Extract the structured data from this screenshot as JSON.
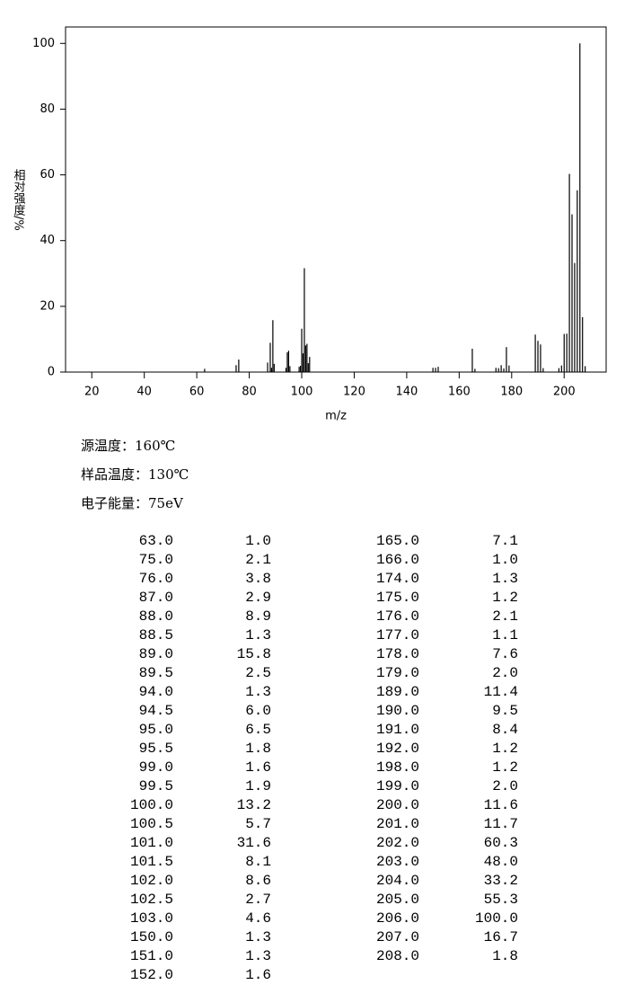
{
  "chart_data": {
    "type": "bar",
    "x_label": "m/z",
    "y_label": "相对强度/%",
    "x": [
      63,
      75,
      76,
      87,
      88,
      88.5,
      89,
      89.5,
      94,
      94.5,
      95,
      95.5,
      99,
      99.5,
      100,
      100.5,
      101,
      101.5,
      102,
      102.5,
      103,
      150,
      151,
      152,
      165,
      166,
      174,
      175,
      176,
      177,
      178,
      179,
      189,
      190,
      191,
      192,
      198,
      199,
      200,
      201,
      202,
      203,
      204,
      205,
      206,
      207,
      208
    ],
    "x_labels": [
      "63.0",
      "75.0",
      "76.0",
      "87.0",
      "88.0",
      "88.5",
      "89.0",
      "89.5",
      "94.0",
      "94.5",
      "95.0",
      "95.5",
      "99.0",
      "99.5",
      "100.0",
      "100.5",
      "101.0",
      "101.5",
      "102.0",
      "102.5",
      "103.0",
      "150.0",
      "151.0",
      "152.0",
      "165.0",
      "166.0",
      "174.0",
      "175.0",
      "176.0",
      "177.0",
      "178.0",
      "179.0",
      "189.0",
      "190.0",
      "191.0",
      "192.0",
      "198.0",
      "199.0",
      "200.0",
      "201.0",
      "202.0",
      "203.0",
      "204.0",
      "205.0",
      "206.0",
      "207.0",
      "208.0"
    ],
    "values": [
      1.0,
      2.1,
      3.8,
      2.9,
      8.9,
      1.3,
      15.8,
      2.5,
      1.3,
      6.0,
      6.5,
      1.8,
      1.6,
      1.9,
      13.2,
      5.7,
      31.6,
      8.1,
      8.6,
      2.7,
      4.6,
      1.3,
      1.3,
      1.6,
      7.1,
      1.0,
      1.3,
      1.2,
      2.1,
      1.1,
      7.6,
      2.0,
      11.4,
      9.5,
      8.4,
      1.2,
      1.2,
      2.0,
      11.6,
      11.7,
      60.3,
      48.0,
      33.2,
      55.3,
      100.0,
      16.7,
      1.8
    ],
    "value_labels": [
      "1.0",
      "2.1",
      "3.8",
      "2.9",
      "8.9",
      "1.3",
      "15.8",
      "2.5",
      "1.3",
      "6.0",
      "6.5",
      "1.8",
      "1.6",
      "1.9",
      "13.2",
      "5.7",
      "31.6",
      "8.1",
      "8.6",
      "2.7",
      "4.6",
      "1.3",
      "1.3",
      "1.6",
      "7.1",
      "1.0",
      "1.3",
      "1.2",
      "2.1",
      "1.1",
      "7.6",
      "2.0",
      "11.4",
      "9.5",
      "8.4",
      "1.2",
      "1.2",
      "2.0",
      "11.6",
      "11.7",
      "60.3",
      "48.0",
      "33.2",
      "55.3",
      "100.0",
      "16.7",
      "1.8"
    ],
    "color": "#000000",
    "xlim": [
      10,
      216
    ],
    "ylim": [
      0,
      105
    ],
    "xticks": [
      20,
      40,
      60,
      80,
      100,
      120,
      140,
      160,
      180,
      200
    ],
    "yticks": [
      0,
      20,
      40,
      60,
      80,
      100
    ]
  },
  "conditions": [
    "源温度：160℃",
    "样品温度：130℃",
    "电子能量：75eV"
  ]
}
